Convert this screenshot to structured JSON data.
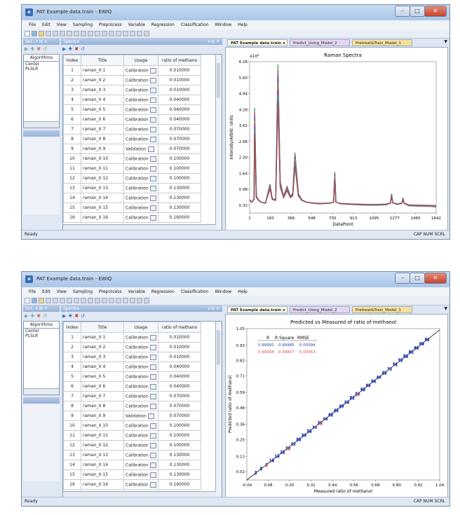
{
  "app": {
    "title": "PAT Example data.train - EWIQ",
    "window_controls": {
      "minimize": "–",
      "maximize": "□",
      "close": "✕"
    }
  },
  "menu": [
    "File",
    "Edit",
    "View",
    "Sampling",
    "Preprocess",
    "Variable",
    "Regression",
    "Classification",
    "Window",
    "Help"
  ],
  "docks": {
    "algorithms": "Sel.. ▾ ⊞ ✕",
    "spectra": "Spectra",
    "spectra_controls": "▾ ⊞ ✕"
  },
  "algorithms": {
    "header": "Algorithms",
    "items": [
      "Center",
      "PLSLR"
    ]
  },
  "spectra_table": {
    "headers": [
      "Index",
      "Title",
      "Usage",
      "ratio of methano"
    ],
    "rows": [
      [
        "1",
        "raman_X  1",
        "Calibration",
        "0.010000"
      ],
      [
        "2",
        "raman_X  2",
        "Calibration",
        "0.010000"
      ],
      [
        "3",
        "raman_X  3",
        "Calibration",
        "0.010000"
      ],
      [
        "4",
        "raman_X  4",
        "Calibration",
        "0.040000"
      ],
      [
        "5",
        "raman_X  5",
        "Calibration",
        "0.040000"
      ],
      [
        "6",
        "raman_X  6",
        "Calibration",
        "0.040000"
      ],
      [
        "7",
        "raman_X  7",
        "Calibration",
        "0.070000"
      ],
      [
        "8",
        "raman_X  8",
        "Calibration",
        "0.070000"
      ],
      [
        "9",
        "raman_X  9",
        "Validation",
        "0.070000"
      ],
      [
        "10",
        "raman_X 10",
        "Calibration",
        "0.100000"
      ],
      [
        "11",
        "raman_X 11",
        "Calibration",
        "0.100000"
      ],
      [
        "12",
        "raman_X 12",
        "Calibration",
        "0.100000"
      ],
      [
        "13",
        "raman_X 13",
        "Calibration",
        "0.130000"
      ],
      [
        "14",
        "raman_X 14",
        "Calibration",
        "0.130000"
      ],
      [
        "15",
        "raman_X 15",
        "Calibration",
        "0.130000"
      ],
      [
        "16",
        "raman_X 16",
        "Calibration",
        "0.160000"
      ]
    ]
  },
  "tabs": [
    "PAT Example data.train",
    "Predict_Using_Model_2",
    "Pretreat&Train_Model_1"
  ],
  "tab_close": "x",
  "status": {
    "left": "Ready",
    "right": "CAP NUM SCRL"
  },
  "icons": {
    "toolbar": [
      "new-icon",
      "open-icon",
      "save-icon",
      "print-icon",
      "cut-icon",
      "copy-icon",
      "paste-icon",
      "undo-icon",
      "redo-icon"
    ],
    "mini": [
      "play-icon",
      "add-icon",
      "delete-icon",
      "refresh-icon"
    ]
  },
  "chart_data": [
    {
      "type": "line",
      "title": "Raman Spectra",
      "xlabel": "DataPoint",
      "ylabel": "Intensity/Arbitr. Units",
      "y_multiplier": "x10⁴",
      "xlim": [
        1,
        1642
      ],
      "ylim": [
        0,
        6.26
      ],
      "x_ticks": [
        "1",
        "183",
        "366",
        "548",
        "730",
        "913",
        "1095",
        "1277",
        "1460",
        "1642"
      ],
      "y_ticks": [
        "0.32",
        "0.98",
        "1.64",
        "2.30",
        "2.96",
        "3.62",
        "4.28",
        "4.94",
        "5.60",
        "6.26"
      ],
      "x": [
        1,
        20,
        40,
        45,
        60,
        80,
        100,
        140,
        180,
        200,
        230,
        250,
        270,
        300,
        330,
        360,
        380,
        400,
        430,
        460,
        500,
        560,
        620,
        700,
        740,
        750,
        760,
        800,
        900,
        1000,
        1100,
        1200,
        1240,
        1250,
        1260,
        1300,
        1340,
        1350,
        1360,
        1400,
        1500,
        1600,
        1642
      ],
      "y": [
        0.55,
        0.45,
        0.6,
        4.35,
        0.7,
        0.55,
        0.45,
        0.4,
        1.2,
        0.6,
        0.55,
        6.15,
        1.3,
        0.7,
        1.1,
        0.7,
        0.8,
        2.5,
        0.8,
        0.55,
        0.45,
        0.4,
        0.38,
        0.4,
        0.45,
        1.7,
        0.45,
        0.38,
        0.35,
        0.33,
        0.32,
        0.34,
        0.4,
        0.8,
        0.42,
        0.35,
        0.4,
        0.62,
        0.4,
        0.3,
        0.28,
        0.27,
        0.25
      ]
    },
    {
      "type": "scatter",
      "title": "Predicted vs Measured of ratio of methanol",
      "xlabel": "Measured ratio of methanol",
      "ylabel": "Predicted ratio of methanol",
      "xlim": [
        -0.04,
        1.04
      ],
      "ylim": [
        -0.04,
        1.05
      ],
      "x_ticks": [
        "-0.04",
        "0.08",
        "0.20",
        "0.32",
        "0.44",
        "0.56",
        "0.68",
        "0.80",
        "0.92",
        "1.04"
      ],
      "y_ticks": [
        "0.02",
        "0.13",
        "0.25",
        "0.36",
        "0.48",
        "0.59",
        "0.71",
        "0.82",
        "0.93",
        "1.05"
      ],
      "stats_headers": [
        "R",
        "R Square",
        "RMSE"
      ],
      "stats": [
        {
          "R": "0.99992",
          "R Square": "0.99985",
          "RMSE": "0.00394"
        },
        {
          "R": "0.99904",
          "R Square": "0.99807",
          "RMSE": "0.00563"
        }
      ],
      "series": [
        {
          "color": "#2c3fb0",
          "labels": [
            "1",
            "2",
            "3",
            "4",
            "5",
            "6",
            "7",
            "8",
            "10",
            "11",
            "12",
            "13",
            "14",
            "15",
            "16",
            "17",
            "18",
            "19",
            "20",
            "22",
            "23",
            "24",
            "25",
            "26",
            "27",
            "28",
            "29",
            "30",
            "31",
            "32",
            "33",
            "34",
            "35",
            "36",
            "37",
            "38",
            "40",
            "41",
            "42",
            "43",
            "44",
            "45",
            "46",
            "47",
            "48",
            "49",
            "50",
            "51",
            "52",
            "53",
            "54",
            "55",
            "56",
            "58",
            "59",
            "60",
            "61",
            "62",
            "63",
            "64",
            "65",
            "66",
            "67",
            "68",
            "69",
            "70",
            "71",
            "72",
            "73",
            "74",
            "75",
            "76",
            "77",
            "78",
            "79",
            "80",
            "81",
            "82",
            "83",
            "84",
            "85",
            "86",
            "87",
            "88",
            "89",
            "90",
            "91",
            "92",
            "93",
            "94"
          ],
          "x": [
            0.01,
            0.01,
            0.01,
            0.04,
            0.04,
            0.04,
            0.07,
            0.07,
            0.1,
            0.1,
            0.1,
            0.13,
            0.13,
            0.13,
            0.16,
            0.16,
            0.16,
            0.19,
            0.19,
            0.22,
            0.22,
            0.25,
            0.25,
            0.25,
            0.28,
            0.28,
            0.28,
            0.31,
            0.31,
            0.31,
            0.34,
            0.34,
            0.37,
            0.37,
            0.37,
            0.4,
            0.4,
            0.43,
            0.43,
            0.43,
            0.46,
            0.46,
            0.46,
            0.49,
            0.49,
            0.49,
            0.52,
            0.52,
            0.55,
            0.55,
            0.55,
            0.58,
            0.58,
            0.61,
            0.61,
            0.61,
            0.64,
            0.64,
            0.64,
            0.67,
            0.67,
            0.67,
            0.7,
            0.7,
            0.73,
            0.73,
            0.73,
            0.76,
            0.76,
            0.79,
            0.79,
            0.79,
            0.82,
            0.82,
            0.82,
            0.85,
            0.85,
            0.85,
            0.88,
            0.88,
            0.88,
            0.91,
            0.91,
            0.91,
            0.94,
            0.94,
            0.94,
            0.97,
            0.97,
            0.97
          ],
          "y": [
            0.012,
            0.008,
            0.015,
            0.038,
            0.042,
            0.045,
            0.068,
            0.072,
            0.098,
            0.102,
            0.105,
            0.128,
            0.132,
            0.135,
            0.158,
            0.162,
            0.165,
            0.188,
            0.192,
            0.218,
            0.222,
            0.248,
            0.252,
            0.255,
            0.278,
            0.282,
            0.285,
            0.308,
            0.312,
            0.315,
            0.338,
            0.342,
            0.368,
            0.372,
            0.375,
            0.398,
            0.402,
            0.428,
            0.432,
            0.435,
            0.458,
            0.462,
            0.465,
            0.488,
            0.492,
            0.495,
            0.518,
            0.522,
            0.548,
            0.552,
            0.555,
            0.578,
            0.582,
            0.608,
            0.612,
            0.615,
            0.638,
            0.642,
            0.645,
            0.668,
            0.672,
            0.675,
            0.698,
            0.702,
            0.728,
            0.732,
            0.735,
            0.758,
            0.762,
            0.788,
            0.792,
            0.795,
            0.818,
            0.822,
            0.825,
            0.848,
            0.852,
            0.855,
            0.878,
            0.882,
            0.885,
            0.908,
            0.912,
            0.915,
            0.938,
            0.942,
            0.945,
            0.968,
            0.972,
            0.975
          ]
        },
        {
          "color": "#e04a4a",
          "labels": [
            "9",
            "21",
            "39",
            "57"
          ],
          "x": [
            0.07,
            0.19,
            0.37,
            0.58
          ],
          "y": [
            0.064,
            0.185,
            0.365,
            0.574
          ]
        }
      ],
      "fit_line": {
        "x": [
          -0.04,
          1.04
        ],
        "y": [
          -0.04,
          1.04
        ]
      }
    }
  ]
}
